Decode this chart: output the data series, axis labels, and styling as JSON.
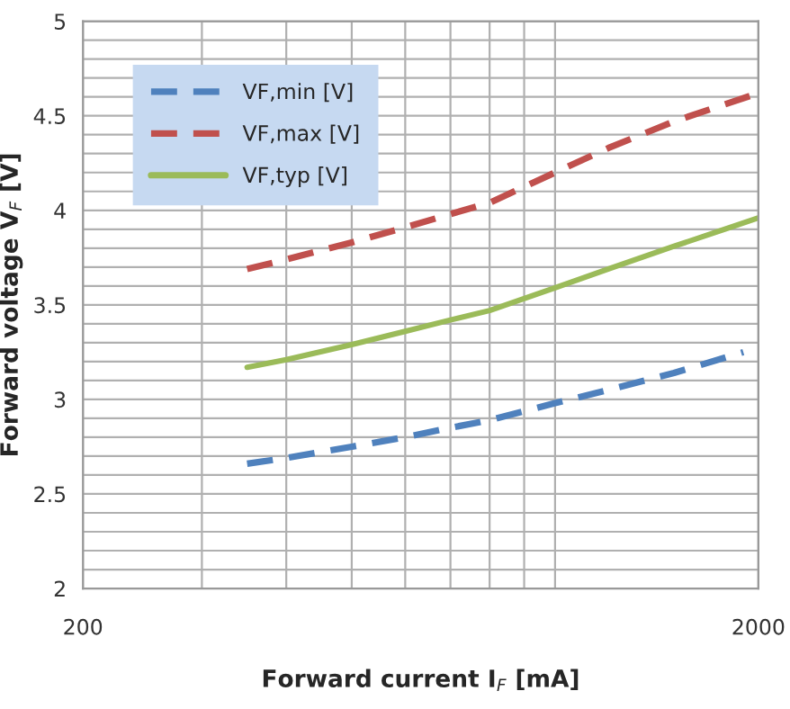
{
  "chart_data": {
    "type": "line",
    "xlabel": "Forward current I$_{F}$ [mA]",
    "ylabel": "Forward voltage V$_{F}$ [V]",
    "log": "x",
    "xlim": [
      200,
      2000
    ],
    "ylim": [
      2,
      5
    ],
    "xticks": [
      200,
      {
        "value": 300,
        "label": null
      },
      {
        "value": 400,
        "label": null
      },
      {
        "value": 500,
        "label": null
      },
      {
        "value": 600,
        "label": null
      },
      {
        "value": 700,
        "label": null
      },
      {
        "value": 800,
        "label": null
      },
      {
        "value": 900,
        "label": null
      },
      {
        "value": 1000,
        "label": null
      },
      {
        "value": 2000,
        "label": "2000"
      }
    ],
    "yticks": [
      2,
      {
        "value": 2.1,
        "label": null
      },
      {
        "value": 2.2,
        "label": null
      },
      {
        "value": 2.3,
        "label": null
      },
      {
        "value": 2.4,
        "label": null
      },
      2.5,
      {
        "value": 2.6,
        "label": null
      },
      {
        "value": 2.7,
        "label": null
      },
      {
        "value": 2.8,
        "label": null
      },
      {
        "value": 2.9,
        "label": null
      },
      3,
      {
        "value": 3.1,
        "label": null
      },
      {
        "value": 3.2,
        "label": null
      },
      {
        "value": 3.3,
        "label": null
      },
      {
        "value": 3.4,
        "label": null
      },
      3.5,
      {
        "value": 3.6,
        "label": null
      },
      {
        "value": 3.7,
        "label": null
      },
      {
        "value": 3.8,
        "label": null
      },
      {
        "value": 3.9,
        "label": null
      },
      4,
      {
        "value": 4.1,
        "label": null
      },
      {
        "value": 4.2,
        "label": null
      },
      {
        "value": 4.3,
        "label": null
      },
      {
        "value": 4.4,
        "label": null
      },
      4.5,
      {
        "value": 4.6,
        "label": null
      },
      {
        "value": 4.7,
        "label": null
      },
      {
        "value": 4.8,
        "label": null
      },
      {
        "value": 4.9,
        "label": null
      },
      5
    ],
    "grid": true,
    "legend": "top left",
    "marker": "none",
    "series": [
      {
        "name": "VF,min [V]",
        "color": "#4f81bd",
        "line_style": "dashed",
        "x": [
          350,
          400,
          500,
          600,
          700,
          800,
          1000,
          1200,
          1500,
          1900
        ],
        "values": [
          2.66,
          2.69,
          2.75,
          2.8,
          2.85,
          2.89,
          2.98,
          3.05,
          3.14,
          3.25
        ]
      },
      {
        "name": "VF,max [V]",
        "color": "#c0504d",
        "line_style": "dashed",
        "x": [
          350,
          400,
          500,
          600,
          700,
          800,
          1000,
          1200,
          1500,
          2000
        ],
        "values": [
          3.69,
          3.74,
          3.83,
          3.91,
          3.98,
          4.04,
          4.2,
          4.33,
          4.47,
          4.62
        ]
      },
      {
        "name": "VF,typ [V]",
        "color": "#9bbb59",
        "line_style": "solid",
        "x": [
          350,
          400,
          500,
          600,
          700,
          800,
          1000,
          1200,
          1500,
          2000
        ],
        "values": [
          3.17,
          3.21,
          3.29,
          3.36,
          3.42,
          3.47,
          3.59,
          3.69,
          3.81,
          3.96
        ]
      }
    ]
  }
}
